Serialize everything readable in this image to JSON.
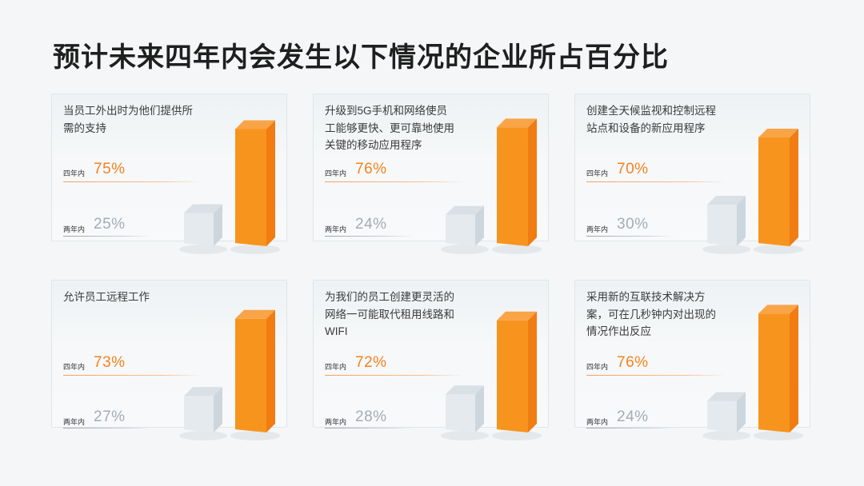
{
  "header": {
    "title": "预计未来四年内会发生以下情况的企业所占百分比"
  },
  "labels": {
    "four_years": "四年内",
    "two_years": "两年内"
  },
  "colors": {
    "four_years_front": "#f7941d",
    "four_years_side": "#f07c12",
    "four_years_top": "#f9a447",
    "two_years_front": "#e5eaee",
    "two_years_side": "#ced6dd",
    "two_years_top": "#d9e0e6"
  },
  "chart_data": [
    {
      "type": "bar",
      "title": "当员工外出时为他们提供所需的支持",
      "categories": [
        "两年内",
        "四年内"
      ],
      "values": [
        25,
        75
      ],
      "value_labels": [
        "25%",
        "75%"
      ]
    },
    {
      "type": "bar",
      "title": "升级到5G手机和网络使员工能够更快、更可靠地使用关键的移动应用程序",
      "categories": [
        "两年内",
        "四年内"
      ],
      "values": [
        24,
        76
      ],
      "value_labels": [
        "24%",
        "76%"
      ]
    },
    {
      "type": "bar",
      "title": "创建全天候监视和控制远程站点和设备的新应用程序",
      "categories": [
        "两年内",
        "四年内"
      ],
      "values": [
        30,
        70
      ],
      "value_labels": [
        "30%",
        "70%"
      ]
    },
    {
      "type": "bar",
      "title": "允许员工远程工作",
      "categories": [
        "两年内",
        "四年内"
      ],
      "values": [
        27,
        73
      ],
      "value_labels": [
        "27%",
        "73%"
      ]
    },
    {
      "type": "bar",
      "title": "为我们的员工创建更灵活的网络一可能取代租用线路和WIFI",
      "categories": [
        "两年内",
        "四年内"
      ],
      "values": [
        28,
        72
      ],
      "value_labels": [
        "28%",
        "72%"
      ]
    },
    {
      "type": "bar",
      "title": "采用新的互联技术解决方案，可在几秒钟内对出现的情况作出反应",
      "categories": [
        "两年内",
        "四年内"
      ],
      "values": [
        24,
        76
      ],
      "value_labels": [
        "24%",
        "76%"
      ]
    }
  ]
}
